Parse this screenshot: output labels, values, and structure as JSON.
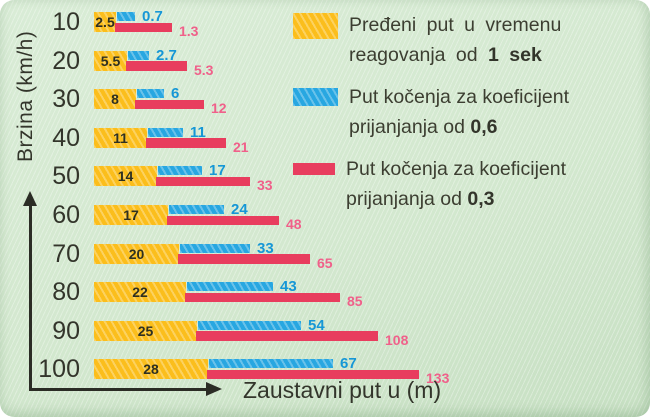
{
  "chart_data": {
    "type": "bar",
    "orientation": "horizontal",
    "title": "",
    "ylabel": "Brzina (km/h)",
    "xlabel": "Zaustavni put u (m)",
    "categories": [
      "10",
      "20",
      "30",
      "40",
      "50",
      "60",
      "70",
      "80",
      "90",
      "100"
    ],
    "series": [
      {
        "name": "Pređeni put u vremenu reagovanja od 1 sek",
        "color": "#fbbe1c",
        "label_color": "#2f3020",
        "values": [
          2.5,
          5.5,
          8,
          11,
          14,
          17,
          20,
          22,
          25,
          28
        ],
        "labels": [
          "2.5",
          "5.5",
          "8",
          "11",
          "14",
          "17",
          "20",
          "22",
          "25",
          "28"
        ]
      },
      {
        "name": "Put kočenja za koeficijent prijanjanja od 0,6",
        "color": "#28a7e1",
        "label_color": "#1697d6",
        "values": [
          0.7,
          2.7,
          6,
          11,
          17,
          24,
          33,
          43,
          54,
          67
        ],
        "labels": [
          "0.7",
          "2.7",
          "6",
          "11",
          "17",
          "24",
          "33",
          "43",
          "54",
          "67"
        ]
      },
      {
        "name": "Put kočenja za koeficijent prijanjanja od 0,3",
        "color": "#e83d5e",
        "label_color": "#f0608a",
        "values": [
          1.3,
          5.3,
          12,
          21,
          33,
          48,
          65,
          85,
          108,
          133
        ],
        "labels": [
          "1.3",
          "5.3",
          "12",
          "21",
          "33",
          "48",
          "65",
          "85",
          "108",
          "133"
        ]
      }
    ],
    "legend": [
      {
        "prefix": "Pređeni put u vremenu reagovanja od ",
        "bold": "1 sek"
      },
      {
        "prefix": "Put kočenja za koeficijent prijanjanja od ",
        "bold": "0,6"
      },
      {
        "prefix": "Put kočenja za koeficijent prijanjanja od ",
        "bold": "0,3"
      }
    ],
    "legend_position": "top-right",
    "grid": false,
    "background_color": "#d3e8cf",
    "xlim": [
      0,
      140
    ]
  }
}
